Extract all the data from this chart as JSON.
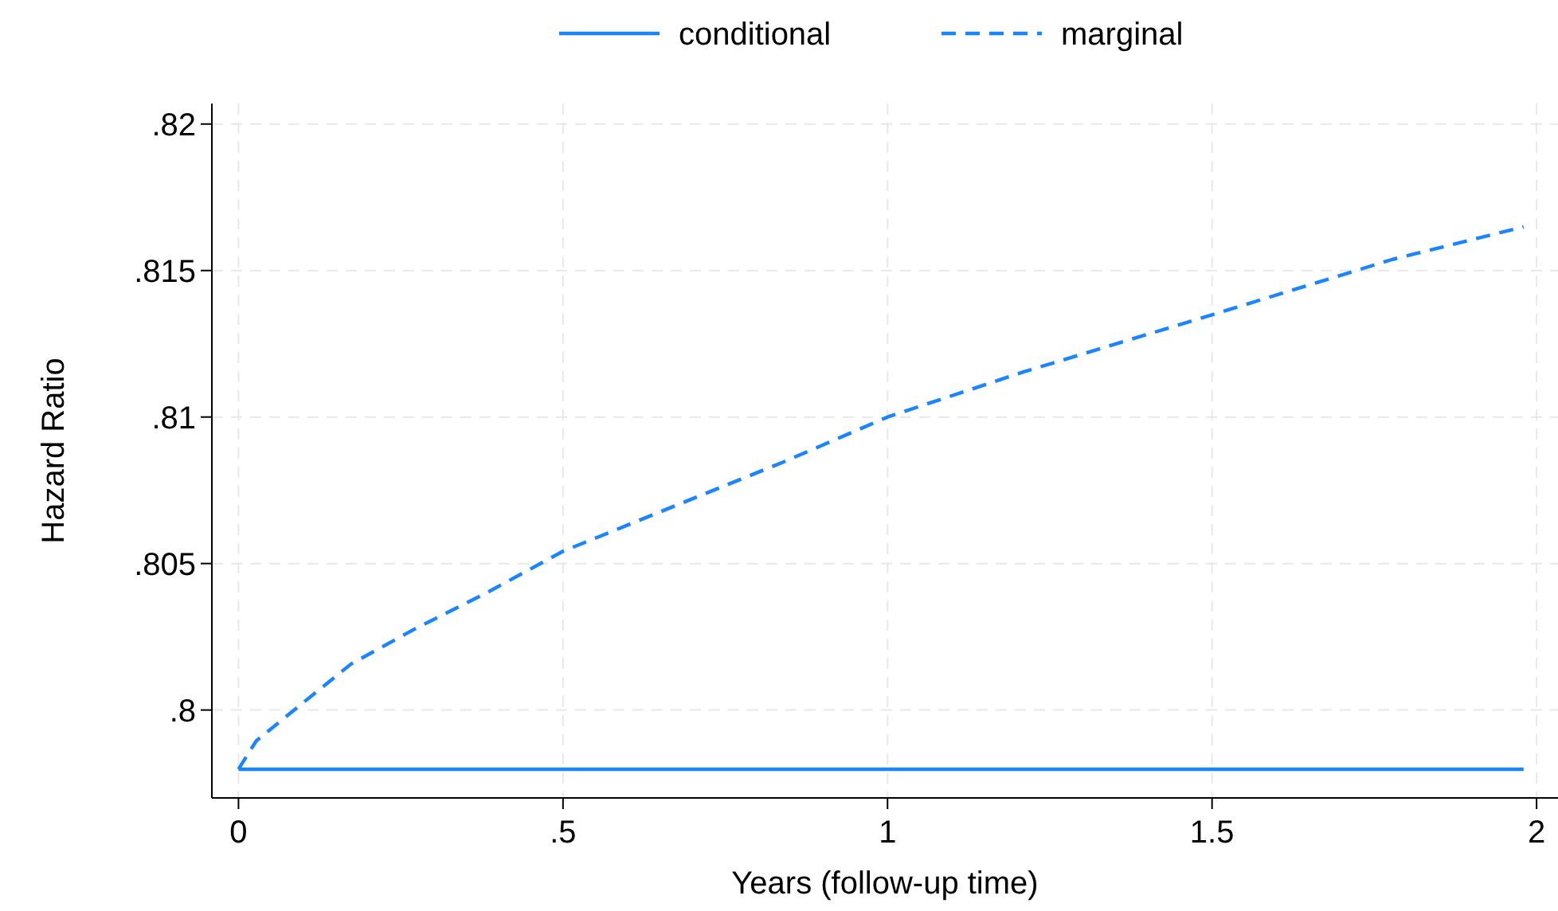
{
  "chart_data": {
    "type": "line",
    "xlabel": "Years (follow-up time)",
    "ylabel": "Hazard Ratio",
    "xlim": [
      -0.041,
      2.033
    ],
    "xticks": [
      0,
      {
        "value": 0.5,
        "label": ".5"
      },
      1,
      1.5,
      2
    ],
    "ylim": [
      0.797,
      0.8207
    ],
    "yticks": [
      {
        "value": 0.8,
        "label": ".8"
      },
      {
        "value": 0.805,
        "label": ".805"
      },
      {
        "value": 0.81,
        "label": ".81"
      },
      {
        "value": 0.815,
        "label": ".815"
      },
      {
        "value": 0.82,
        "label": ".82"
      }
    ],
    "grid": true,
    "legend": "top",
    "series": [
      {
        "name": "conditional",
        "color": "#1a85ff",
        "line_style": "solid",
        "x": [
          0,
          1.98
        ],
        "values": [
          0.79798,
          0.79798
        ]
      },
      {
        "name": "marginal",
        "color": "#1a85ff",
        "line_style": "dashed",
        "x": [
          0,
          0.0275,
          0.0924,
          0.1734,
          0.271,
          0.384,
          0.5,
          0.676,
          0.838,
          1,
          1.211,
          1.5,
          1.778,
          1.98
        ],
        "values": [
          0.79798,
          0.79895,
          0.80012,
          0.80157,
          0.80276,
          0.80402,
          0.80542,
          0.807,
          0.80845,
          0.81,
          0.81155,
          0.81349,
          0.81538,
          0.81649
        ]
      }
    ]
  }
}
